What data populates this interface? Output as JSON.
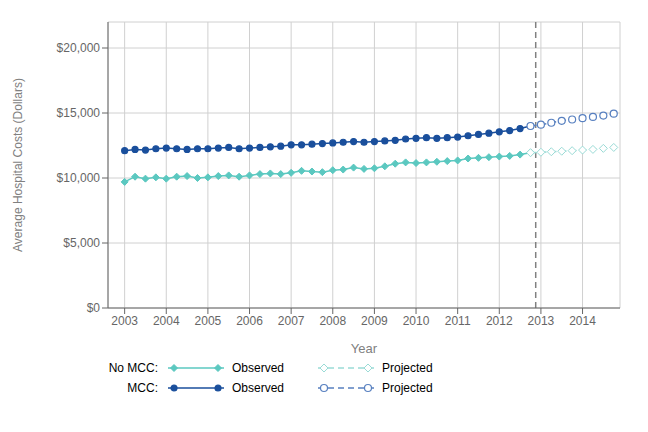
{
  "chart_data": {
    "type": "line",
    "xlabel": "Year",
    "ylabel": "Average Hospital Costs (Dollars)",
    "xlim": [
      2002.6,
      2014.9
    ],
    "xticks": [
      2003,
      2004,
      2005,
      2006,
      2007,
      2008,
      2009,
      2010,
      2011,
      2012,
      2013,
      2014
    ],
    "ylim": [
      0,
      22000
    ],
    "yticks": [
      {
        "value": 0,
        "label": "$0"
      },
      {
        "value": 5000,
        "label": "$5,000"
      },
      {
        "value": 10000,
        "label": "$10,000"
      },
      {
        "value": 15000,
        "label": "$15,000"
      },
      {
        "value": 20000,
        "label": "$20,000"
      }
    ],
    "grid": true,
    "vlines": [
      {
        "x": 2012.875,
        "color": "#808080",
        "line_style": "dashed"
      }
    ],
    "series": [
      {
        "group": "No MCC:",
        "name": "Observed",
        "color": "#5bc8c0",
        "marker": "diamond",
        "line_style": "solid",
        "x": [
          2003.0,
          2003.25,
          2003.5,
          2003.75,
          2004.0,
          2004.25,
          2004.5,
          2004.75,
          2005.0,
          2005.25,
          2005.5,
          2005.75,
          2006.0,
          2006.25,
          2006.5,
          2006.75,
          2007.0,
          2007.25,
          2007.5,
          2007.75,
          2008.0,
          2008.25,
          2008.5,
          2008.75,
          2009.0,
          2009.25,
          2009.5,
          2009.75,
          2010.0,
          2010.25,
          2010.5,
          2010.75,
          2011.0,
          2011.25,
          2011.5,
          2011.75,
          2012.0,
          2012.25,
          2012.5,
          2012.75
        ],
        "values": [
          9700,
          10100,
          9950,
          10050,
          9950,
          10100,
          10150,
          10000,
          10050,
          10150,
          10200,
          10100,
          10200,
          10300,
          10350,
          10300,
          10400,
          10550,
          10500,
          10450,
          10600,
          10650,
          10800,
          10700,
          10750,
          10900,
          11100,
          11200,
          11150,
          11200,
          11250,
          11300,
          11350,
          11500,
          11550,
          11600,
          11650,
          11700,
          11800,
          11950
        ]
      },
      {
        "group": "No MCC:",
        "name": "Projected",
        "color": "#9adbd6",
        "marker": "open_diamond",
        "line_style": "dashed",
        "x": [
          2012.75,
          2013.0,
          2013.25,
          2013.5,
          2013.75,
          2014.0,
          2014.25,
          2014.5,
          2014.75
        ],
        "values": [
          11950,
          11980,
          12020,
          12060,
          12100,
          12150,
          12200,
          12280,
          12350
        ]
      },
      {
        "group": "MCC:",
        "name": "Observed",
        "color": "#1a4f9c",
        "marker": "circle",
        "line_style": "solid",
        "x": [
          2003.0,
          2003.25,
          2003.5,
          2003.75,
          2004.0,
          2004.25,
          2004.5,
          2004.75,
          2005.0,
          2005.25,
          2005.5,
          2005.75,
          2006.0,
          2006.25,
          2006.5,
          2006.75,
          2007.0,
          2007.25,
          2007.5,
          2007.75,
          2008.0,
          2008.25,
          2008.5,
          2008.75,
          2009.0,
          2009.25,
          2009.5,
          2009.75,
          2010.0,
          2010.25,
          2010.5,
          2010.75,
          2011.0,
          2011.25,
          2011.5,
          2011.75,
          2012.0,
          2012.25,
          2012.5,
          2012.75
        ],
        "values": [
          12100,
          12200,
          12150,
          12250,
          12300,
          12250,
          12200,
          12250,
          12250,
          12300,
          12350,
          12250,
          12300,
          12350,
          12400,
          12450,
          12550,
          12550,
          12600,
          12650,
          12700,
          12750,
          12800,
          12750,
          12800,
          12850,
          12900,
          13000,
          13050,
          13100,
          13050,
          13100,
          13150,
          13250,
          13350,
          13450,
          13550,
          13650,
          13800,
          14000
        ]
      },
      {
        "group": "MCC:",
        "name": "Projected",
        "color": "#5880c0",
        "marker": "open_circle",
        "line_style": "dashed",
        "x": [
          2012.75,
          2013.0,
          2013.25,
          2013.5,
          2013.75,
          2014.0,
          2014.25,
          2014.5,
          2014.75
        ],
        "values": [
          14000,
          14100,
          14250,
          14400,
          14500,
          14600,
          14700,
          14800,
          14950
        ]
      }
    ]
  }
}
